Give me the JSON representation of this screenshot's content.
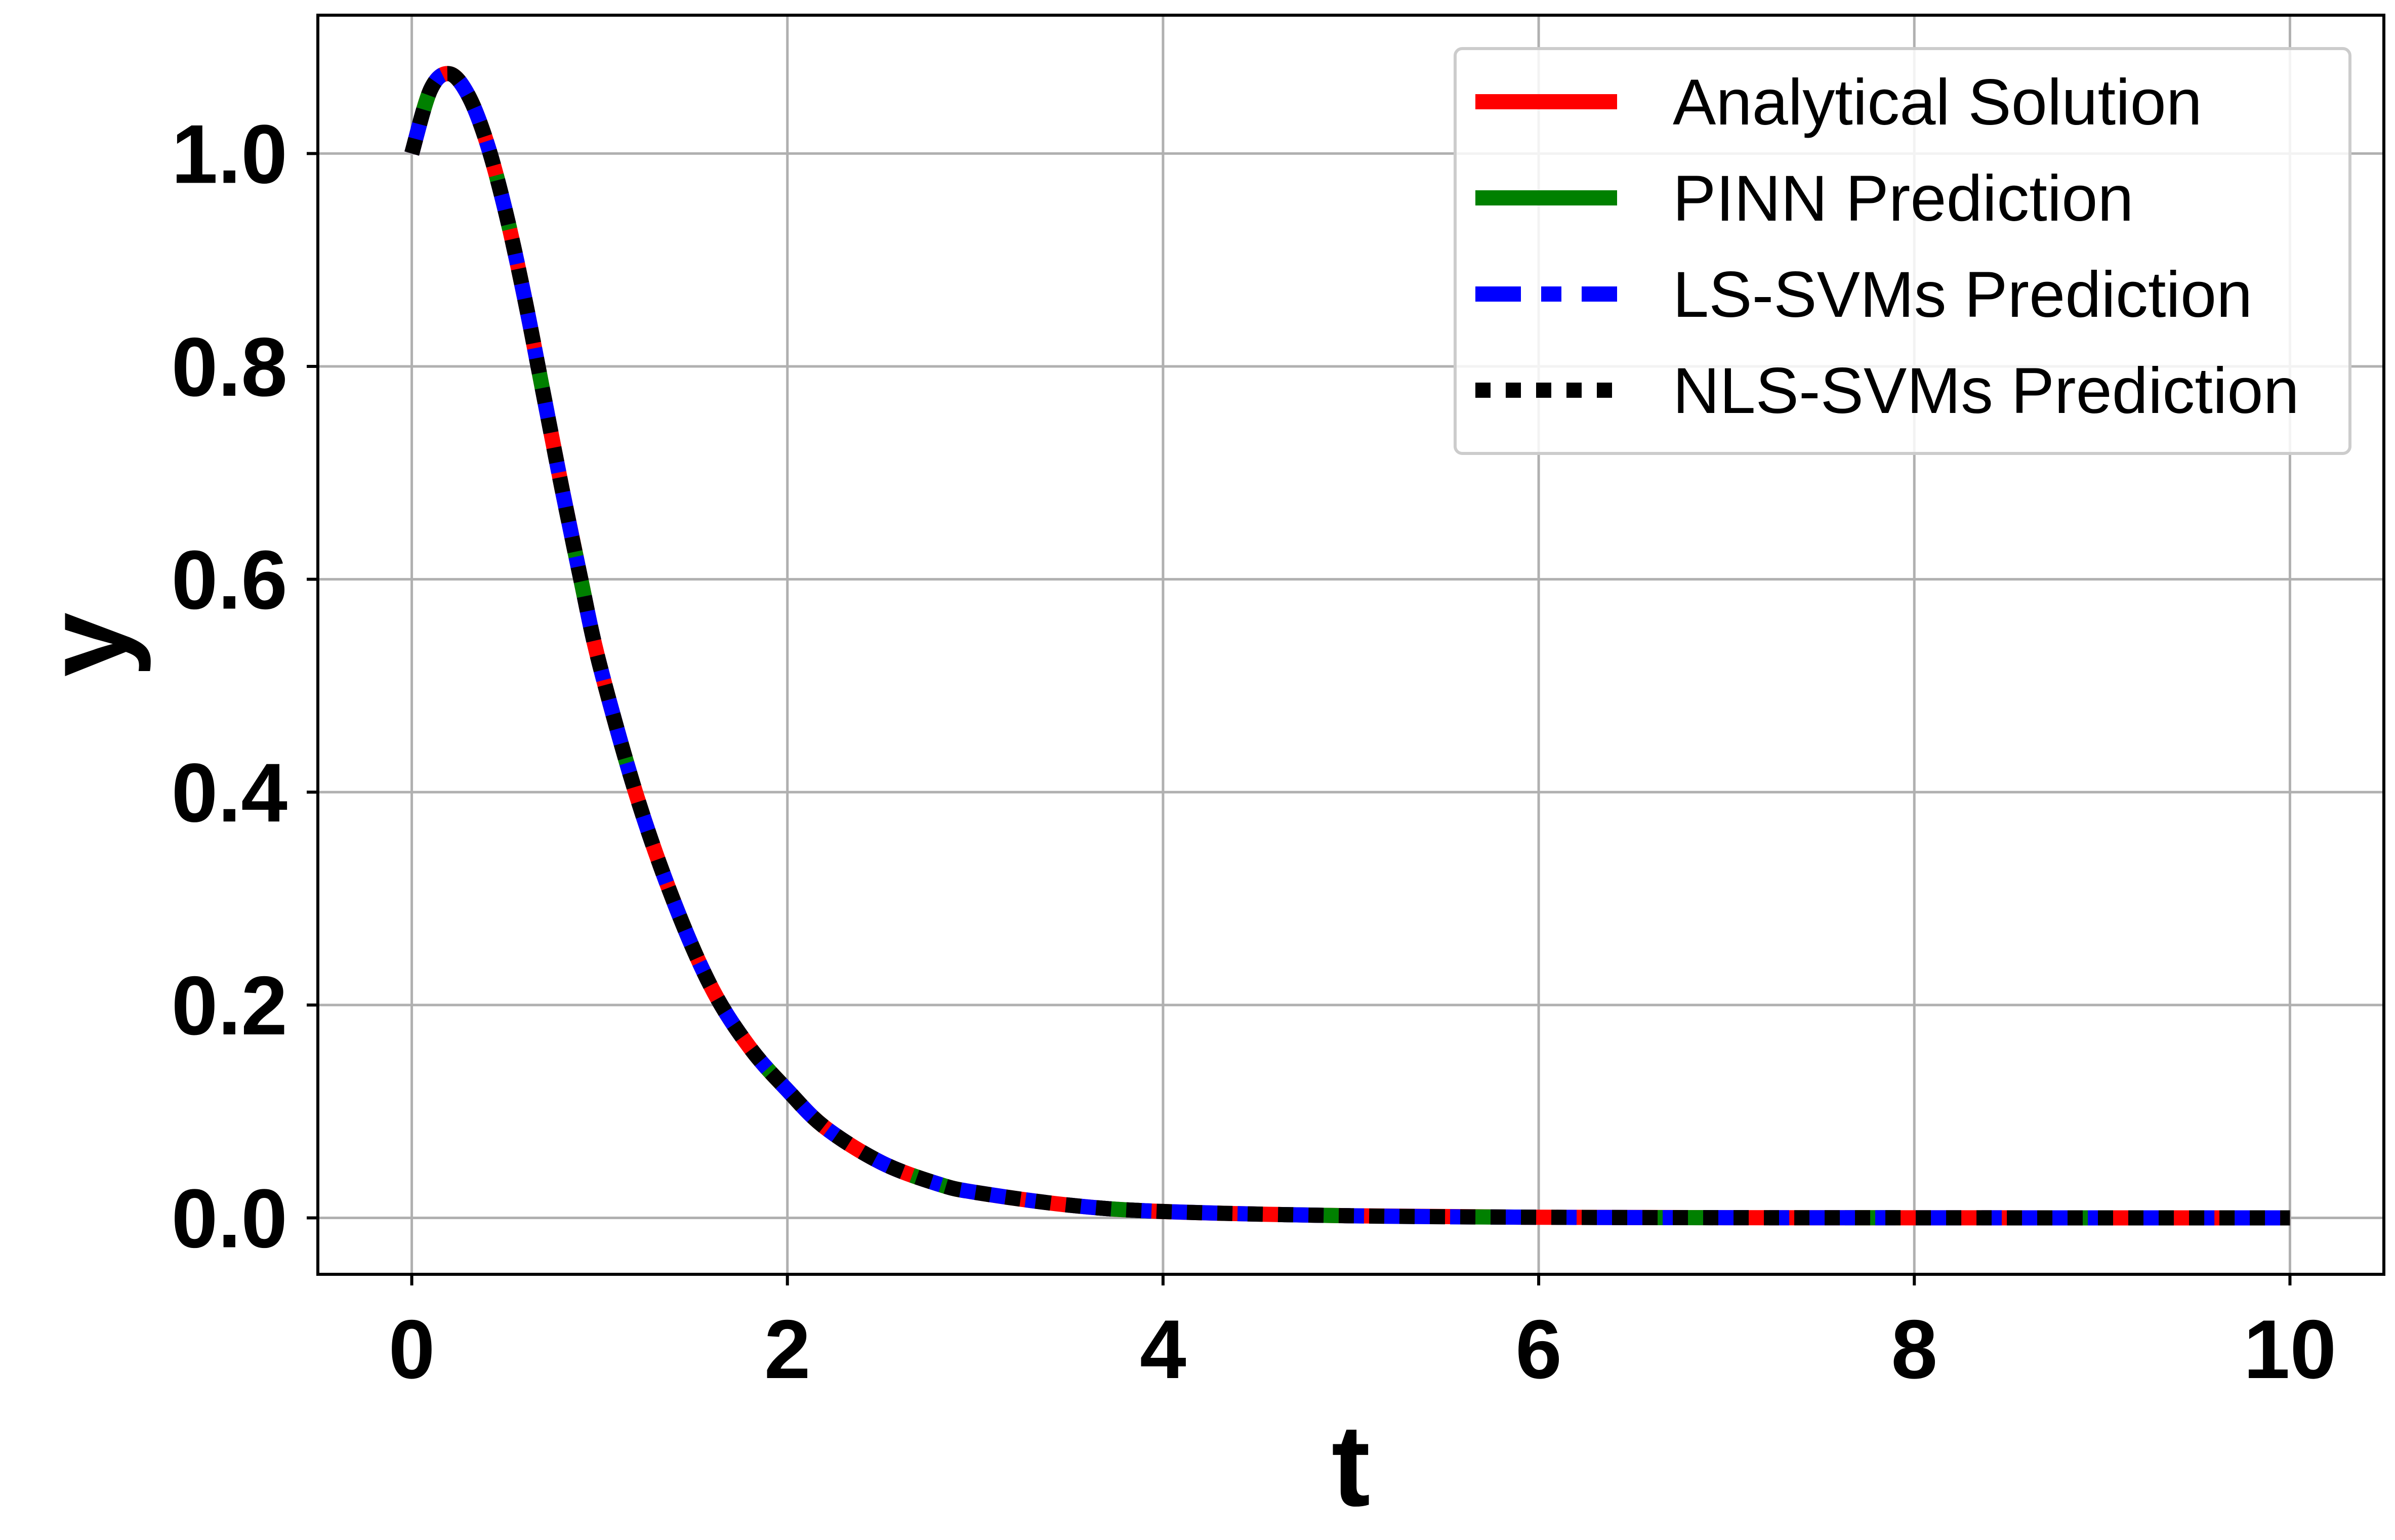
{
  "chart_data": {
    "type": "line",
    "title": "",
    "xlabel": "t",
    "ylabel": "y",
    "xlim": [
      -0.5,
      10.5
    ],
    "ylim": [
      -0.053,
      1.13
    ],
    "xticks": [
      0,
      2,
      4,
      6,
      8,
      10
    ],
    "xtick_labels": [
      "0",
      "2",
      "4",
      "6",
      "8",
      "10"
    ],
    "yticks": [
      0.0,
      0.2,
      0.4,
      0.6,
      0.8,
      1.0
    ],
    "ytick_labels": [
      "0.0",
      "0.2",
      "0.4",
      "0.6",
      "0.8",
      "1.0"
    ],
    "grid": true,
    "legend_position": "top-right",
    "x": [
      0,
      0.1,
      0.2,
      0.3,
      0.4,
      0.5,
      0.6,
      0.7,
      0.8,
      0.9,
      1.0,
      1.2,
      1.4,
      1.6,
      1.8,
      2.0,
      2.2,
      2.5,
      2.8,
      3.0,
      3.5,
      4.0,
      5.0,
      6.0,
      7.0,
      8.0,
      9.0,
      10.0
    ],
    "series": [
      {
        "name": "Analytical Solution",
        "color": "#ff0000",
        "style": "solid",
        "values": [
          1.0,
          1.06,
          1.075,
          1.055,
          1.01,
          0.945,
          0.865,
          0.775,
          0.685,
          0.6,
          0.52,
          0.395,
          0.295,
          0.215,
          0.16,
          0.12,
          0.085,
          0.052,
          0.032,
          0.024,
          0.012,
          0.006,
          0.002,
          0.0006,
          0.0002,
          0.0001,
          0.0,
          0.0
        ]
      },
      {
        "name": "PINN Prediction",
        "color": "#008000",
        "style": "dashed",
        "values": [
          1.0,
          1.06,
          1.075,
          1.055,
          1.01,
          0.945,
          0.865,
          0.775,
          0.685,
          0.6,
          0.52,
          0.395,
          0.295,
          0.215,
          0.16,
          0.12,
          0.085,
          0.052,
          0.032,
          0.024,
          0.012,
          0.006,
          0.002,
          0.0006,
          0.0002,
          0.0001,
          0.0,
          0.0
        ]
      },
      {
        "name": "LS-SVMs Prediction",
        "color": "#0000ff",
        "style": "dashdot",
        "values": [
          1.0,
          1.06,
          1.075,
          1.055,
          1.01,
          0.945,
          0.865,
          0.775,
          0.685,
          0.6,
          0.52,
          0.395,
          0.295,
          0.215,
          0.16,
          0.12,
          0.085,
          0.052,
          0.032,
          0.024,
          0.012,
          0.006,
          0.002,
          0.0006,
          0.0002,
          0.0001,
          0.0,
          0.0
        ]
      },
      {
        "name": "NLS-SVMs Prediction",
        "color": "#000000",
        "style": "dotted",
        "values": [
          1.0,
          1.06,
          1.075,
          1.055,
          1.01,
          0.945,
          0.865,
          0.775,
          0.685,
          0.6,
          0.52,
          0.395,
          0.295,
          0.215,
          0.16,
          0.12,
          0.085,
          0.052,
          0.032,
          0.024,
          0.012,
          0.006,
          0.002,
          0.0006,
          0.0002,
          0.0001,
          0.0,
          0.0
        ]
      }
    ]
  }
}
